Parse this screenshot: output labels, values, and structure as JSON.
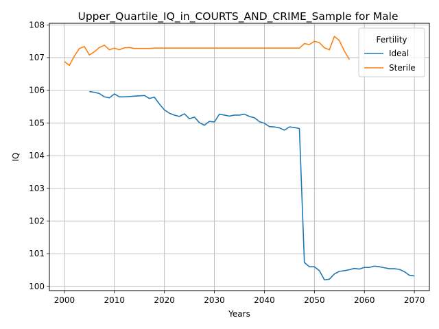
{
  "chart_data": {
    "type": "line",
    "title": "Upper_Quartile_IQ_in_COURTS_AND_CRIME_Sample for Male",
    "xlabel": "Years",
    "ylabel": "IQ",
    "xlim": [
      1997,
      2073
    ],
    "ylim": [
      99.87,
      108.05
    ],
    "xticks": [
      2000,
      2010,
      2020,
      2030,
      2040,
      2050,
      2060,
      2070
    ],
    "yticks": [
      100,
      101,
      102,
      103,
      104,
      105,
      106,
      107,
      108
    ],
    "grid": true,
    "legend": {
      "title": "Fertility",
      "position": "top-right"
    },
    "series": [
      {
        "name": "Ideal",
        "color": "#1f77b4",
        "x": [
          2005,
          2006,
          2007,
          2008,
          2009,
          2010,
          2011,
          2012,
          2013,
          2014,
          2015,
          2016,
          2017,
          2018,
          2019,
          2020,
          2021,
          2022,
          2023,
          2024,
          2025,
          2026,
          2027,
          2028,
          2029,
          2030,
          2031,
          2032,
          2033,
          2034,
          2035,
          2036,
          2037,
          2038,
          2039,
          2040,
          2041,
          2042,
          2043,
          2044,
          2045,
          2046,
          2047,
          2048,
          2049,
          2050,
          2051,
          2052,
          2053,
          2054,
          2055,
          2056,
          2057,
          2058,
          2059,
          2060,
          2061,
          2062,
          2063,
          2064,
          2065,
          2066,
          2067,
          2068,
          2069,
          2070
        ],
        "y": [
          105.96,
          105.94,
          105.9,
          105.8,
          105.77,
          105.89,
          105.8,
          105.8,
          105.81,
          105.82,
          105.83,
          105.84,
          105.75,
          105.79,
          105.58,
          105.4,
          105.3,
          105.24,
          105.2,
          105.28,
          105.13,
          105.18,
          105.01,
          104.93,
          105.05,
          105.03,
          105.27,
          105.24,
          105.21,
          105.24,
          105.24,
          105.27,
          105.2,
          105.16,
          105.04,
          104.99,
          104.89,
          104.88,
          104.85,
          104.78,
          104.88,
          104.86,
          104.83,
          100.73,
          100.6,
          100.6,
          100.48,
          100.2,
          100.22,
          100.38,
          100.46,
          100.48,
          100.51,
          100.55,
          100.53,
          100.58,
          100.58,
          100.62,
          100.6,
          100.57,
          100.54,
          100.54,
          100.52,
          100.45,
          100.34,
          100.32
        ]
      },
      {
        "name": "Sterile",
        "color": "#ff7f0e",
        "x": [
          2000,
          2001,
          2002,
          2003,
          2004,
          2005,
          2006,
          2007,
          2008,
          2009,
          2010,
          2011,
          2012,
          2013,
          2014,
          2015,
          2016,
          2017,
          2018,
          2019,
          2020,
          2021,
          2022,
          2023,
          2024,
          2025,
          2026,
          2027,
          2028,
          2029,
          2030,
          2031,
          2032,
          2033,
          2034,
          2035,
          2036,
          2037,
          2038,
          2039,
          2040,
          2041,
          2042,
          2043,
          2044,
          2045,
          2046,
          2047,
          2048,
          2049,
          2050,
          2051,
          2052,
          2053,
          2054,
          2055,
          2056,
          2057
        ],
        "y": [
          106.88,
          106.76,
          107.05,
          107.28,
          107.34,
          107.08,
          107.18,
          107.31,
          107.38,
          107.24,
          107.29,
          107.24,
          107.3,
          107.31,
          107.28,
          107.28,
          107.28,
          107.28,
          107.29,
          107.29,
          107.29,
          107.29,
          107.29,
          107.29,
          107.29,
          107.29,
          107.29,
          107.29,
          107.29,
          107.29,
          107.29,
          107.29,
          107.29,
          107.29,
          107.29,
          107.29,
          107.29,
          107.29,
          107.29,
          107.29,
          107.29,
          107.29,
          107.29,
          107.29,
          107.29,
          107.29,
          107.29,
          107.29,
          107.43,
          107.4,
          107.5,
          107.46,
          107.3,
          107.24,
          107.65,
          107.52,
          107.2,
          106.94
        ]
      }
    ]
  }
}
